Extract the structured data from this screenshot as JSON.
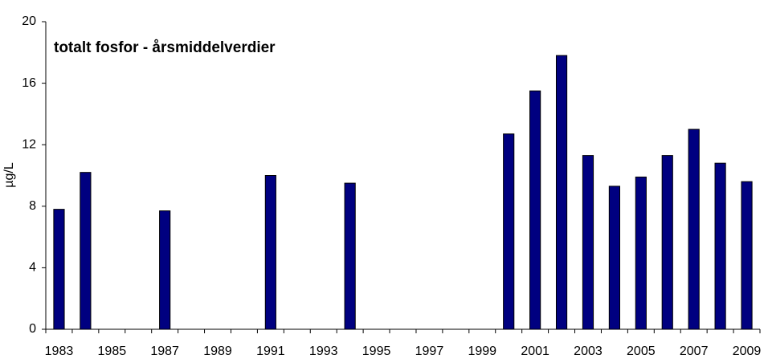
{
  "chart_data": {
    "type": "bar",
    "title": "totalt fosfor - årsmiddelverdier",
    "y_label": "µg/L",
    "categories": [
      "1983",
      null,
      "1985",
      null,
      "1987",
      null,
      "1989",
      null,
      "1991",
      null,
      "1993",
      null,
      "1995",
      null,
      "1997",
      null,
      "1999",
      null,
      "2001",
      null,
      "2003",
      null,
      "2005",
      null,
      "2007",
      null,
      "2009"
    ],
    "values": [
      7.8,
      10.2,
      null,
      null,
      7.7,
      null,
      null,
      null,
      10.0,
      null,
      null,
      9.5,
      null,
      null,
      null,
      null,
      null,
      12.7,
      15.5,
      17.8,
      11.3,
      9.3,
      9.9,
      11.3,
      13.0,
      10.8,
      9.6
    ],
    "color": "#000080",
    "ylim": [
      0,
      20
    ],
    "yticks": [
      0,
      4,
      8,
      12,
      16,
      20
    ],
    "grid": false
  }
}
